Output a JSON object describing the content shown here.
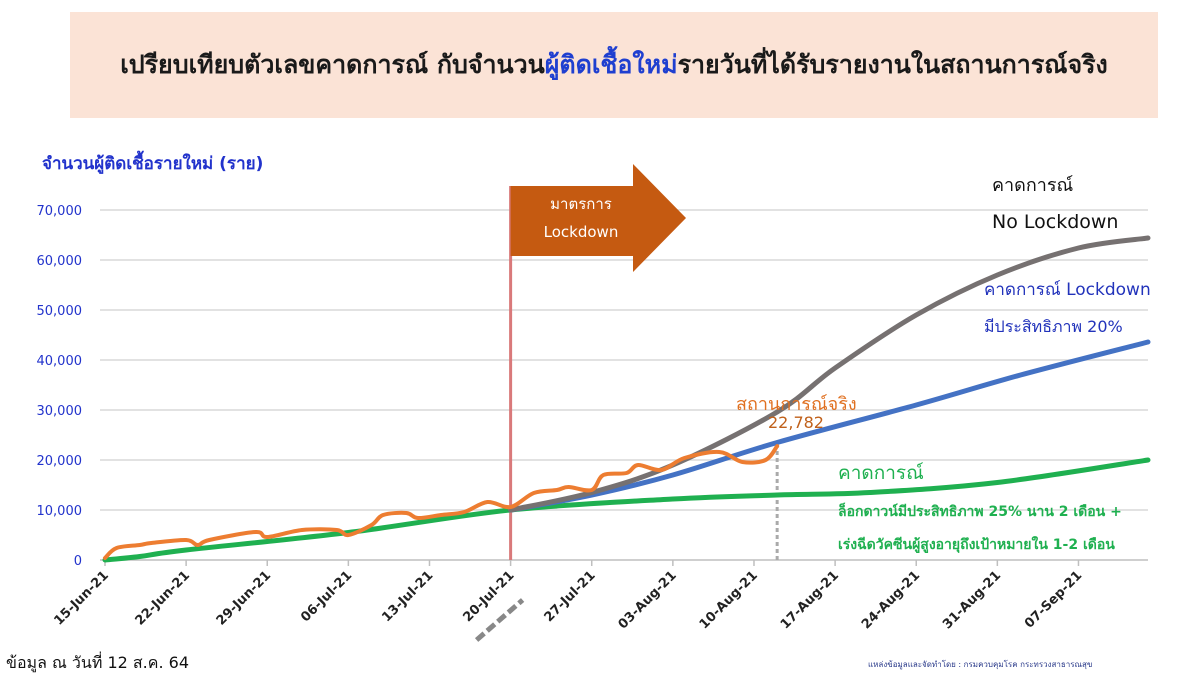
{
  "title": {
    "before": "เปรียบเทียบตัวเลขคาดการณ์ กับจำนวน",
    "highlight": "ผู้ติดเชื้อใหม่",
    "after": "รายวันที่ได้รับรายงานในสถานการณ์จริง"
  },
  "footer": {
    "as_of": "ข้อมูล ณ วันที่ 12 ส.ค. 64",
    "source": "แหล่งข้อมูลและจัดทำโดย : กรมควบคุมโรค กระทรวงสาธารณสุข"
  },
  "colors": {
    "banner": "#fbe3d6",
    "actual": "#ed7d31",
    "no_lockdown": "#767171",
    "lockdown20": "#4472c4",
    "lockdown25_vaccine": "#1fb050",
    "lockdown_line": "#d9797a",
    "arrow": "#c55a11",
    "axis_labels": "#2233cc"
  },
  "chart_data": {
    "type": "line",
    "title": "",
    "ylabel": "จำนวนผู้ติดเชื้อรายใหม่ (ราย)",
    "xlabel": "",
    "ylim": [
      0,
      70000
    ],
    "xlim": [
      "2021-06-15",
      "2021-09-13"
    ],
    "grid": true,
    "y_ticks": [
      "0",
      "10,000",
      "20,000",
      "30,000",
      "40,000",
      "50,000",
      "60,000",
      "70,000"
    ],
    "x_ticks": [
      "15-Jun-21",
      "22-Jun-21",
      "29-Jun-21",
      "06-Jul-21",
      "13-Jul-21",
      "20-Jul-21",
      "27-Jul-21",
      "03-Aug-21",
      "10-Aug-21",
      "17-Aug-21",
      "24-Aug-21",
      "31-Aug-21",
      "07-Sep-21"
    ],
    "annotations": {
      "lockdown_arrow": [
        "มาตรการ",
        "Lockdown"
      ],
      "lockdown_date": "2021-07-20",
      "actual_label": "สถานการณ์จริง",
      "actual_last_value": "22,782",
      "actual_last_date": "2021-08-12",
      "no_lockdown": [
        "คาดการณ์",
        "No Lockdown"
      ],
      "lockdown20": [
        "คาดการณ์ Lockdown",
        "มีประสิทธิภาพ 20%"
      ],
      "lockdown25": [
        "คาดการณ์",
        "ล็อกดาวน์มีประสิทธิภาพ 25% นาน 2 เดือน +",
        "เร่งฉีดวัคซีนผู้สูงอายุถึงเป้าหมายใน 1-2 เดือน"
      ]
    },
    "series": [
      {
        "key": "actual",
        "points": [
          [
            "2021-06-15",
            400
          ],
          [
            "2021-06-16",
            2400
          ],
          [
            "2021-06-18",
            3000
          ],
          [
            "2021-06-19",
            3400
          ],
          [
            "2021-06-22",
            4000
          ],
          [
            "2021-06-23",
            3000
          ],
          [
            "2021-06-24",
            4000
          ],
          [
            "2021-06-28",
            5600
          ],
          [
            "2021-06-29",
            4600
          ],
          [
            "2021-07-02",
            6000
          ],
          [
            "2021-07-05",
            6000
          ],
          [
            "2021-07-06",
            5000
          ],
          [
            "2021-07-08",
            7000
          ],
          [
            "2021-07-09",
            9000
          ],
          [
            "2021-07-11",
            9400
          ],
          [
            "2021-07-12",
            8400
          ],
          [
            "2021-07-14",
            9000
          ],
          [
            "2021-07-16",
            9600
          ],
          [
            "2021-07-18",
            11600
          ],
          [
            "2021-07-20",
            10600
          ],
          [
            "2021-07-22",
            13400
          ],
          [
            "2021-07-24",
            14000
          ],
          [
            "2021-07-25",
            14600
          ],
          [
            "2021-07-27",
            14000
          ],
          [
            "2021-07-28",
            17000
          ],
          [
            "2021-07-30",
            17400
          ],
          [
            "2021-07-31",
            19000
          ],
          [
            "2021-08-02",
            18000
          ],
          [
            "2021-08-04",
            20400
          ],
          [
            "2021-08-07",
            21600
          ],
          [
            "2021-08-09",
            19600
          ],
          [
            "2021-08-11",
            20000
          ],
          [
            "2021-08-12",
            22782
          ]
        ]
      },
      {
        "key": "no_lockdown",
        "points": [
          [
            "2021-07-20",
            10000
          ],
          [
            "2021-07-27",
            13500
          ],
          [
            "2021-08-03",
            19000
          ],
          [
            "2021-08-12",
            29600
          ],
          [
            "2021-08-17",
            38400
          ],
          [
            "2021-08-24",
            49000
          ],
          [
            "2021-08-31",
            57000
          ],
          [
            "2021-09-07",
            62400
          ],
          [
            "2021-09-13",
            64400
          ]
        ]
      },
      {
        "key": "lockdown20",
        "points": [
          [
            "2021-07-20",
            10000
          ],
          [
            "2021-07-27",
            13000
          ],
          [
            "2021-08-03",
            17000
          ],
          [
            "2021-08-12",
            23500
          ],
          [
            "2021-08-24",
            31000
          ],
          [
            "2021-09-02",
            37000
          ],
          [
            "2021-09-13",
            43600
          ]
        ]
      },
      {
        "key": "lockdown25_vaccine",
        "points": [
          [
            "2021-06-15",
            0
          ],
          [
            "2021-06-18",
            700
          ],
          [
            "2021-06-22",
            2000
          ],
          [
            "2021-07-06",
            5500
          ],
          [
            "2021-07-20",
            10000
          ],
          [
            "2021-08-03",
            12200
          ],
          [
            "2021-08-12",
            13000
          ],
          [
            "2021-08-20",
            13500
          ],
          [
            "2021-08-31",
            15500
          ],
          [
            "2021-09-13",
            20000
          ]
        ]
      }
    ]
  }
}
